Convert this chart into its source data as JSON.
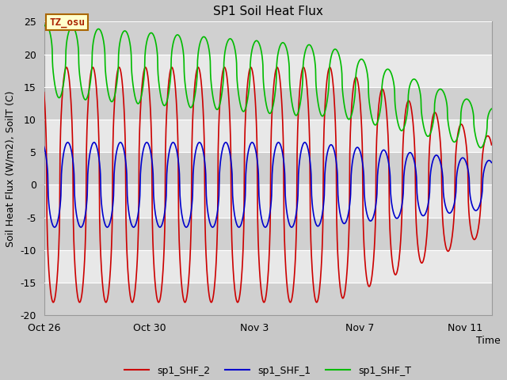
{
  "title": "SP1 Soil Heat Flux",
  "ylabel": "Soil Heat Flux (W/m2), SoilT (C)",
  "xlabel": "Time",
  "ylim": [
    -20,
    25
  ],
  "xlim": [
    0,
    17
  ],
  "xtick_pos": [
    0,
    4,
    8,
    12,
    16
  ],
  "xtick_labels": [
    "Oct 26",
    "Oct 30",
    "Nov 3",
    "Nov 7",
    "Nov 11"
  ],
  "ytick_vals": [
    -20,
    -15,
    -10,
    -5,
    0,
    5,
    10,
    15,
    20,
    25
  ],
  "legend_labels": [
    "sp1_SHF_2",
    "sp1_SHF_1",
    "sp1_SHF_T"
  ],
  "line_colors": [
    "#cc0000",
    "#0000cc",
    "#00bb00"
  ],
  "fig_bg": "#c8c8c8",
  "plot_bg": "#e8e8e8",
  "band_color": "#d0d0d0",
  "band_ranges": [
    [
      -20,
      -15
    ],
    [
      -10,
      -5
    ],
    [
      0,
      5
    ],
    [
      10,
      15
    ],
    [
      20,
      25
    ]
  ],
  "annotation_text": "TZ_osu",
  "annotation_color": "#aa2200",
  "annotation_bg": "#ffffcc",
  "annotation_border": "#aa6600",
  "grid_color": "#ffffff",
  "figsize": [
    6.4,
    4.8
  ],
  "dpi": 100
}
